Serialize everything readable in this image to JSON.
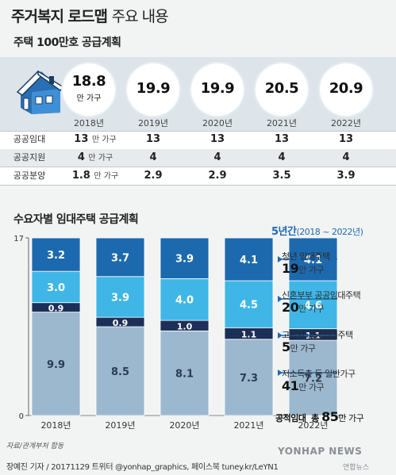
{
  "header": {
    "title_bold": "주거복지 로드맵",
    "title_rest": "주요 내용"
  },
  "plan1": {
    "subtitle": "주택 100만호 공급계획",
    "years": [
      "2018년",
      "2019년",
      "2020년",
      "2021년",
      "2022년"
    ],
    "totals": [
      "18.8",
      "19.9",
      "19.9",
      "20.5",
      "20.9"
    ],
    "first_unit": "만 가구",
    "row_unit": "만 가구",
    "rows": [
      {
        "label": "공공임대",
        "values": [
          "13",
          "13",
          "13",
          "13",
          "13"
        ]
      },
      {
        "label": "공공지원",
        "values": [
          "4",
          "4",
          "4",
          "4",
          "4"
        ]
      },
      {
        "label": "공공분양",
        "values": [
          "1.8",
          "2.9",
          "2.9",
          "3.5",
          "3.9"
        ]
      }
    ]
  },
  "plan2": {
    "subtitle": "수요자별 임대주택 공급계획",
    "five_year": "5년간",
    "five_year_range": "(2018 ~ 2022년)",
    "categories": [
      {
        "name": "청년 임대주택",
        "value": "19",
        "unit": "만 가구"
      },
      {
        "name": "신혼부부 공공임대주택",
        "value": "20",
        "unit": "만 가구"
      },
      {
        "name": "고령자 공공임대주택",
        "value": "5",
        "unit": "만 가구"
      },
      {
        "name": "저소득층 등 일반가구",
        "value": "41",
        "unit": "만 가구"
      }
    ],
    "grand_total_label": "공적임대",
    "grand_total_pre": "총",
    "grand_total_value": "85",
    "grand_total_unit": "만 가구"
  },
  "chart_data": {
    "type": "bar",
    "stacked": true,
    "categories": [
      "2018년",
      "2019년",
      "2020년",
      "2021년",
      "2022년"
    ],
    "ylim": [
      0,
      17
    ],
    "yticks": [
      0,
      17
    ],
    "series": [
      {
        "name": "저소득층 등 일반가구",
        "values": [
          9.9,
          8.5,
          8.1,
          7.3,
          7.2
        ],
        "color": "#9cb8cf"
      },
      {
        "name": "고령자 공공임대주택",
        "values": [
          0.9,
          0.9,
          1.0,
          1.1,
          1.1
        ],
        "color": "#1b2f57"
      },
      {
        "name": "신혼부부 공공임대주택",
        "values": [
          3.0,
          3.9,
          4.0,
          4.5,
          4.6
        ],
        "color": "#3fb6e6"
      },
      {
        "name": "청년 임대주택",
        "values": [
          3.2,
          3.7,
          3.9,
          4.1,
          4.1
        ],
        "color": "#1d69ae"
      }
    ]
  },
  "footer": {
    "source": "자료/관계부처 합동",
    "credit": "장예진 기자 / 20171129 트위터 @yonhap_graphics, 페이스북 tuney.kr/LeYN1",
    "watermark": "YONHAP NEWS",
    "logo_text": "연합뉴스"
  }
}
